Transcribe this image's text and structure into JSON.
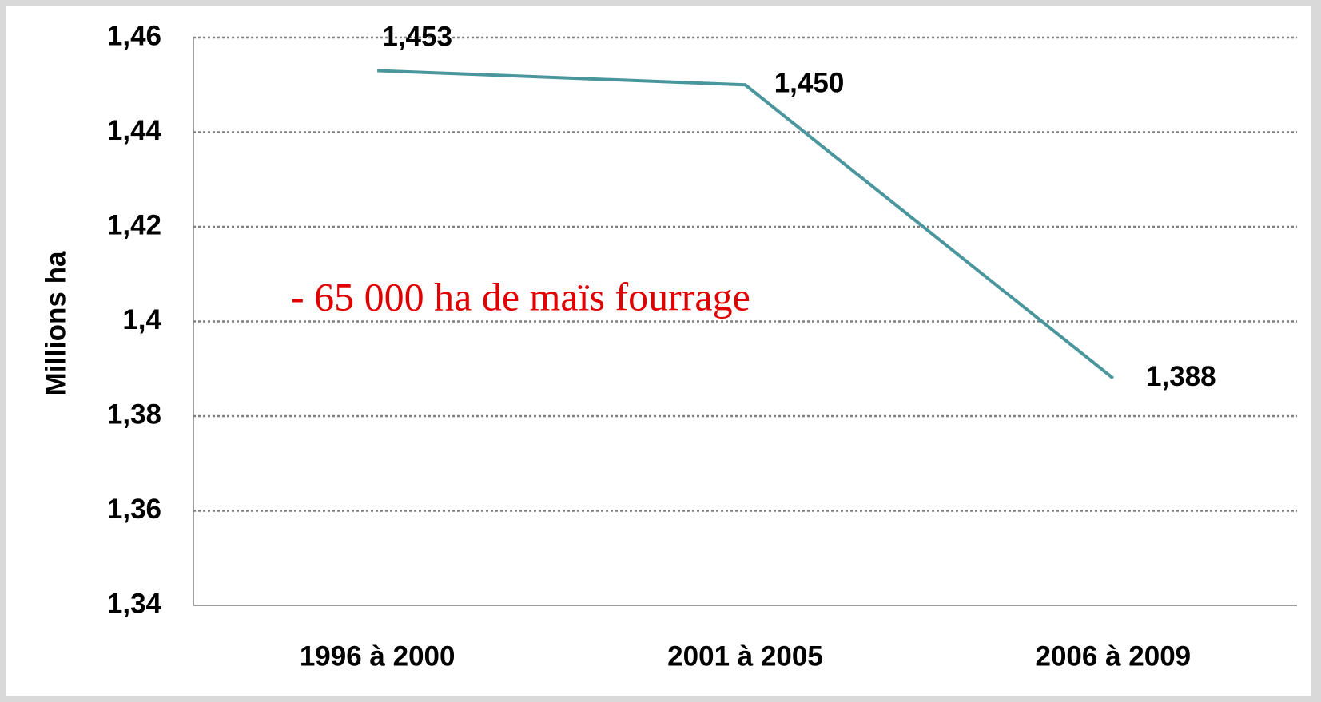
{
  "chart_data": {
    "type": "line",
    "y_label": "Millions ha",
    "annotation": "- 65 000 ha de maïs fourrage",
    "categories": [
      "1996 à 2000",
      "2001 à 2005",
      "2006 à 2009"
    ],
    "series": [
      {
        "name": null,
        "color": "#4a969d",
        "values": [
          1.453,
          1.45,
          1.388
        ],
        "value_labels": [
          "1,453",
          "1,450",
          "1,388"
        ]
      }
    ],
    "ylim": [
      1.34,
      1.46
    ],
    "yticks": [
      {
        "value": 1.34,
        "label": "1,34"
      },
      {
        "value": 1.36,
        "label": "1,36"
      },
      {
        "value": 1.38,
        "label": "1,38"
      },
      {
        "value": 1.4,
        "label": "1,4"
      },
      {
        "value": 1.42,
        "label": "1,42"
      },
      {
        "value": 1.44,
        "label": "1,44"
      },
      {
        "value": 1.46,
        "label": "1,46"
      }
    ],
    "grid": true
  }
}
